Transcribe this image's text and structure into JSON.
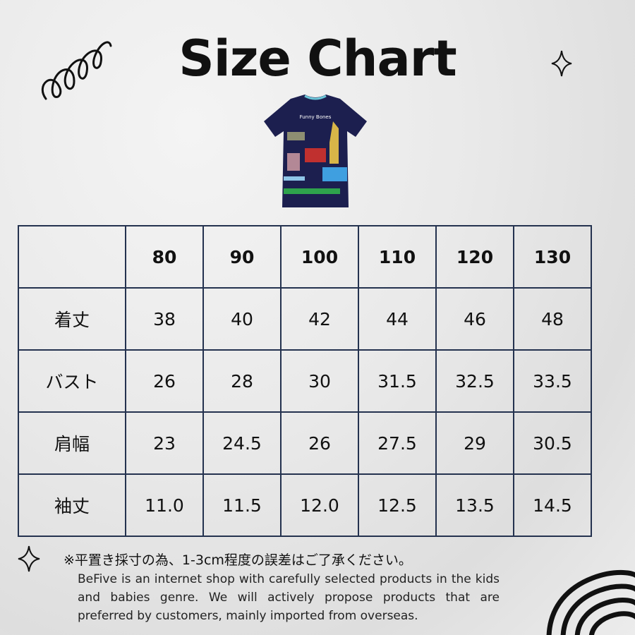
{
  "title": "Size Chart",
  "product_image": {
    "alt": "Navy kids T-shirt with glowing animal skeleton print",
    "print_text": "Funny Bones"
  },
  "table": {
    "headers": [
      "",
      "80",
      "90",
      "100",
      "110",
      "120",
      "130"
    ],
    "rows": [
      {
        "label": "着丈",
        "values": [
          "38",
          "40",
          "42",
          "44",
          "46",
          "48"
        ]
      },
      {
        "label": "バスト",
        "values": [
          "26",
          "28",
          "30",
          "31.5",
          "32.5",
          "33.5"
        ]
      },
      {
        "label": "肩幅",
        "values": [
          "23",
          "24.5",
          "26",
          "27.5",
          "29",
          "30.5"
        ]
      },
      {
        "label": "袖丈",
        "values": [
          "11.0",
          "11.5",
          "12.0",
          "12.5",
          "13.5",
          "14.5"
        ]
      }
    ]
  },
  "note": "※平置き採寸の為、1-3cm程度の誤差はご了承ください。",
  "description": "BeFive is an internet shop with carefully selected products in the kids and babies genre. We will actively propose products that are preferred by customers, mainly imported from overseas.",
  "colors": {
    "table_border": "#24324f",
    "shirt": "#1c1f4f"
  },
  "icons": [
    "squiggle-icon",
    "sparkle-icon",
    "sparkle-icon",
    "rainbow-arcs-icon"
  ]
}
